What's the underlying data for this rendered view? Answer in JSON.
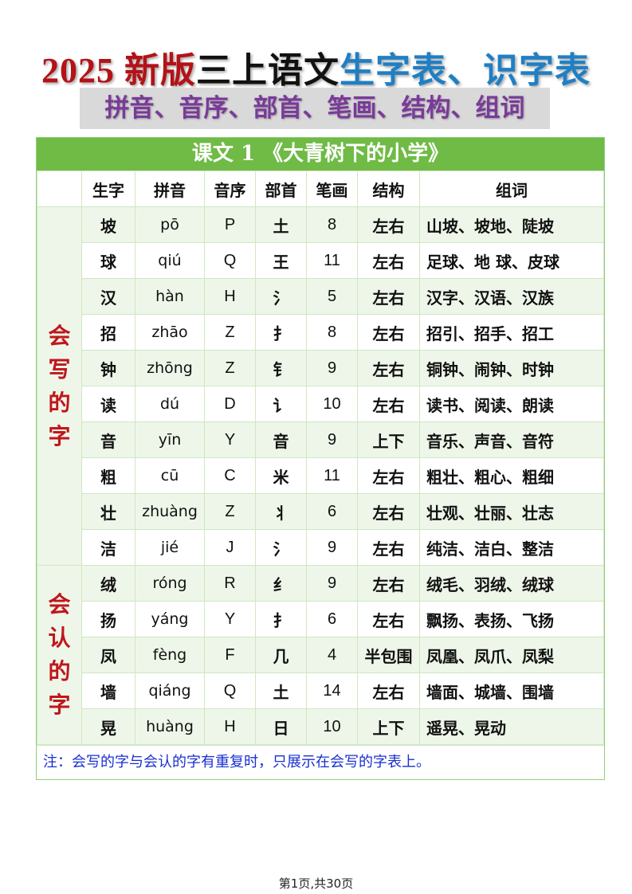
{
  "title": {
    "part1": "2025 新版",
    "part2": "三上语文",
    "part3": "生字表、识字表"
  },
  "subtitle": "拼音、音序、部首、笔画、结构、组词",
  "lesson_title": "课文 1 《大青树下的小学》",
  "headers": [
    "",
    "生字",
    "拼音",
    "音序",
    "部首",
    "笔画",
    "结构",
    "组词"
  ],
  "sections": [
    {
      "label": "会写的字",
      "rows": [
        [
          "坡",
          "pō",
          "P",
          "土",
          "8",
          "左右",
          "山坡、坡地、陡坡"
        ],
        [
          "球",
          "qiú",
          "Q",
          "王",
          "11",
          "左右",
          "足球、地 球、皮球"
        ],
        [
          "汉",
          "hàn",
          "H",
          "氵",
          "5",
          "左右",
          "汉字、汉语、汉族"
        ],
        [
          "招",
          "zhāo",
          "Z",
          "扌",
          "8",
          "左右",
          "招引、招手、招工"
        ],
        [
          "钟",
          "zhōng",
          "Z",
          "钅",
          "9",
          "左右",
          "铜钟、闹钟、时钟"
        ],
        [
          "读",
          "dú",
          "D",
          "讠",
          "10",
          "左右",
          "读书、阅读、朗读"
        ],
        [
          "音",
          "yīn",
          "Y",
          "音",
          "9",
          "上下",
          "音乐、声音、音符"
        ],
        [
          "粗",
          "cū",
          "C",
          "米",
          "11",
          "左右",
          "粗壮、粗心、粗细"
        ],
        [
          "壮",
          "zhuàng",
          "Z",
          "丬",
          "6",
          "左右",
          "壮观、壮丽、壮志"
        ],
        [
          "洁",
          "jié",
          "J",
          "氵",
          "9",
          "左右",
          "纯洁、洁白、整洁"
        ]
      ]
    },
    {
      "label": "会认的字",
      "rows": [
        [
          "绒",
          "róng",
          "R",
          "纟",
          "9",
          "左右",
          "绒毛、羽绒、绒球"
        ],
        [
          "扬",
          "yáng",
          "Y",
          "扌",
          "6",
          "左右",
          "飘扬、表扬、飞扬"
        ],
        [
          "凤",
          "fèng",
          "F",
          "几",
          "4",
          "半包围",
          "凤凰、凤爪、凤梨"
        ],
        [
          "墙",
          "qiáng",
          "Q",
          "土",
          "14",
          "左右",
          "墙面、城墙、围墙"
        ],
        [
          "晃",
          "huàng",
          "H",
          "日",
          "10",
          "上下",
          "遥晃、晃动"
        ]
      ]
    }
  ],
  "note": "注：会写的字与会认的字有重复时，只展示在会写的字表上。",
  "footer": "第1页,共30页"
}
